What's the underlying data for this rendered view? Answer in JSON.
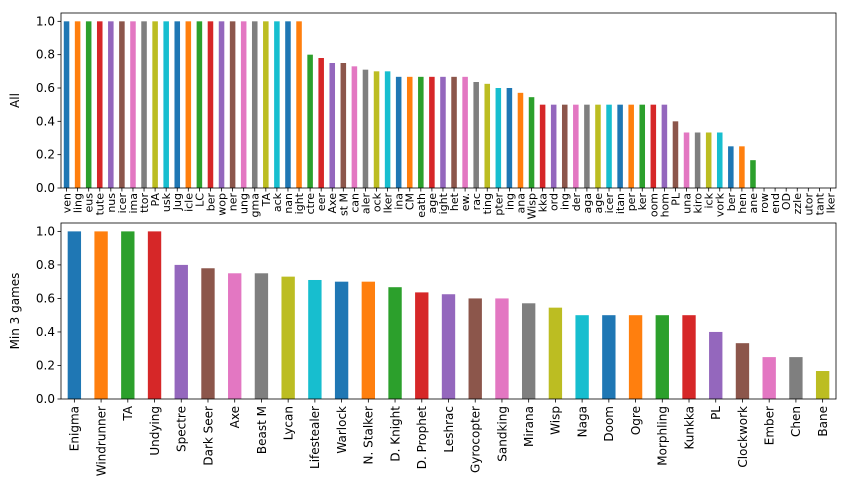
{
  "palette": [
    "#1f77b4",
    "#ff7f0e",
    "#2ca02c",
    "#d62728",
    "#9467bd",
    "#8c564b",
    "#e377c2",
    "#7f7f7f",
    "#bcbd22",
    "#17becf"
  ],
  "chart_data": [
    {
      "type": "bar",
      "ylabel": "All",
      "ylim": [
        0,
        1.05
      ],
      "yticks": [
        "0.0",
        "0.2",
        "0.4",
        "0.6",
        "0.8",
        "1.0"
      ],
      "grid": false,
      "categories": [
        "ven",
        "ling",
        "eus",
        "tute",
        "nus",
        "icer",
        "ima",
        "ttor",
        "PA",
        "usk",
        "Jug",
        "icle",
        "LC",
        "ber",
        "wop",
        "ner",
        "ung",
        "gma",
        "TA",
        "ack",
        "nan",
        "ight",
        "ctre",
        "eer",
        "Axe",
        "st M",
        "can",
        "aler",
        "ock",
        "lker",
        "ina",
        "CM",
        "eath",
        "age",
        "ight",
        "het",
        "ew.",
        "rac",
        "ting",
        "pter",
        "ing",
        "ana",
        "Wisp",
        "kka",
        "ord",
        "ing",
        "der",
        "aga",
        "age",
        "icer",
        "itan",
        "per",
        "ker",
        "oom",
        "hom",
        "PL",
        "una",
        "kiro",
        "ick",
        "vork",
        "ber",
        "hen",
        "ane",
        "row",
        "end",
        "OD",
        "zzle",
        "utor",
        "tant",
        "lker"
      ],
      "values": [
        1,
        1,
        1,
        1,
        1,
        1,
        1,
        1,
        1,
        1,
        1,
        1,
        1,
        1,
        1,
        1,
        1,
        1,
        1,
        1,
        1,
        1,
        0.8,
        0.78,
        0.75,
        0.75,
        0.73,
        0.71,
        0.7,
        0.7,
        0.667,
        0.667,
        0.667,
        0.667,
        0.667,
        0.667,
        0.667,
        0.636,
        0.625,
        0.6,
        0.6,
        0.571,
        0.545,
        0.5,
        0.5,
        0.5,
        0.5,
        0.5,
        0.5,
        0.5,
        0.5,
        0.5,
        0.5,
        0.5,
        0.5,
        0.4,
        0.333,
        0.333,
        0.333,
        0.333,
        0.25,
        0.25,
        0.167,
        0,
        0,
        0,
        0,
        0,
        0,
        0
      ]
    },
    {
      "type": "bar",
      "ylabel": "Min 3 games",
      "ylim": [
        0,
        1.05
      ],
      "yticks": [
        "0.0",
        "0.2",
        "0.4",
        "0.6",
        "0.8",
        "1.0"
      ],
      "grid": false,
      "categories": [
        "Enigma",
        "Windrunner",
        "TA",
        "Undying",
        "Spectre",
        "Dark Seer",
        "Axe",
        "Beast M",
        "Lycan",
        "Lifestealer",
        "Warlock",
        "N. Stalker",
        "D. Knight",
        "D. Prophet",
        "Leshrac",
        "Gyrocopter",
        "Sandking",
        "Mirana",
        "Wisp",
        "Naga",
        "Doom",
        "Ogre",
        "Morphling",
        "Kunkka",
        "PL",
        "Clockwork",
        "Ember",
        "Chen",
        "Bane"
      ],
      "values": [
        1,
        1,
        1,
        1,
        0.8,
        0.78,
        0.75,
        0.75,
        0.73,
        0.71,
        0.7,
        0.7,
        0.667,
        0.636,
        0.625,
        0.6,
        0.6,
        0.571,
        0.545,
        0.5,
        0.5,
        0.5,
        0.5,
        0.5,
        0.4,
        0.333,
        0.25,
        0.25,
        0.167
      ]
    }
  ]
}
